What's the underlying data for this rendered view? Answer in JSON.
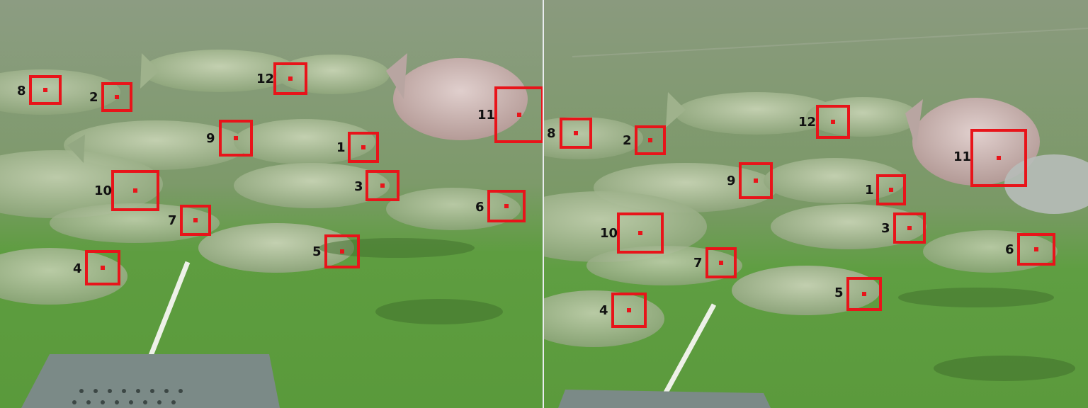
{
  "colors": {
    "box": "#e8141a",
    "label": "#111111",
    "water_top": "#8fa084",
    "water_bottom": "#5d9f3f",
    "fish_body": "#a6b894",
    "fish_salmon": "#c4a8a3"
  },
  "left_panel": {
    "labels": {
      "b1": "1",
      "b2": "2",
      "b3": "3",
      "b4": "4",
      "b5": "5",
      "b6": "6",
      "b7": "7",
      "b8": "8",
      "b9": "9",
      "b10": "10",
      "b11": "11",
      "b12": "12"
    }
  },
  "right_panel": {
    "labels": {
      "b1": "1",
      "b2": "2",
      "b3": "3",
      "b4": "4",
      "b5": "5",
      "b6": "6",
      "b7": "7",
      "b8": "8",
      "b9": "9",
      "b10": "10",
      "b11": "11",
      "b12": "12"
    }
  }
}
